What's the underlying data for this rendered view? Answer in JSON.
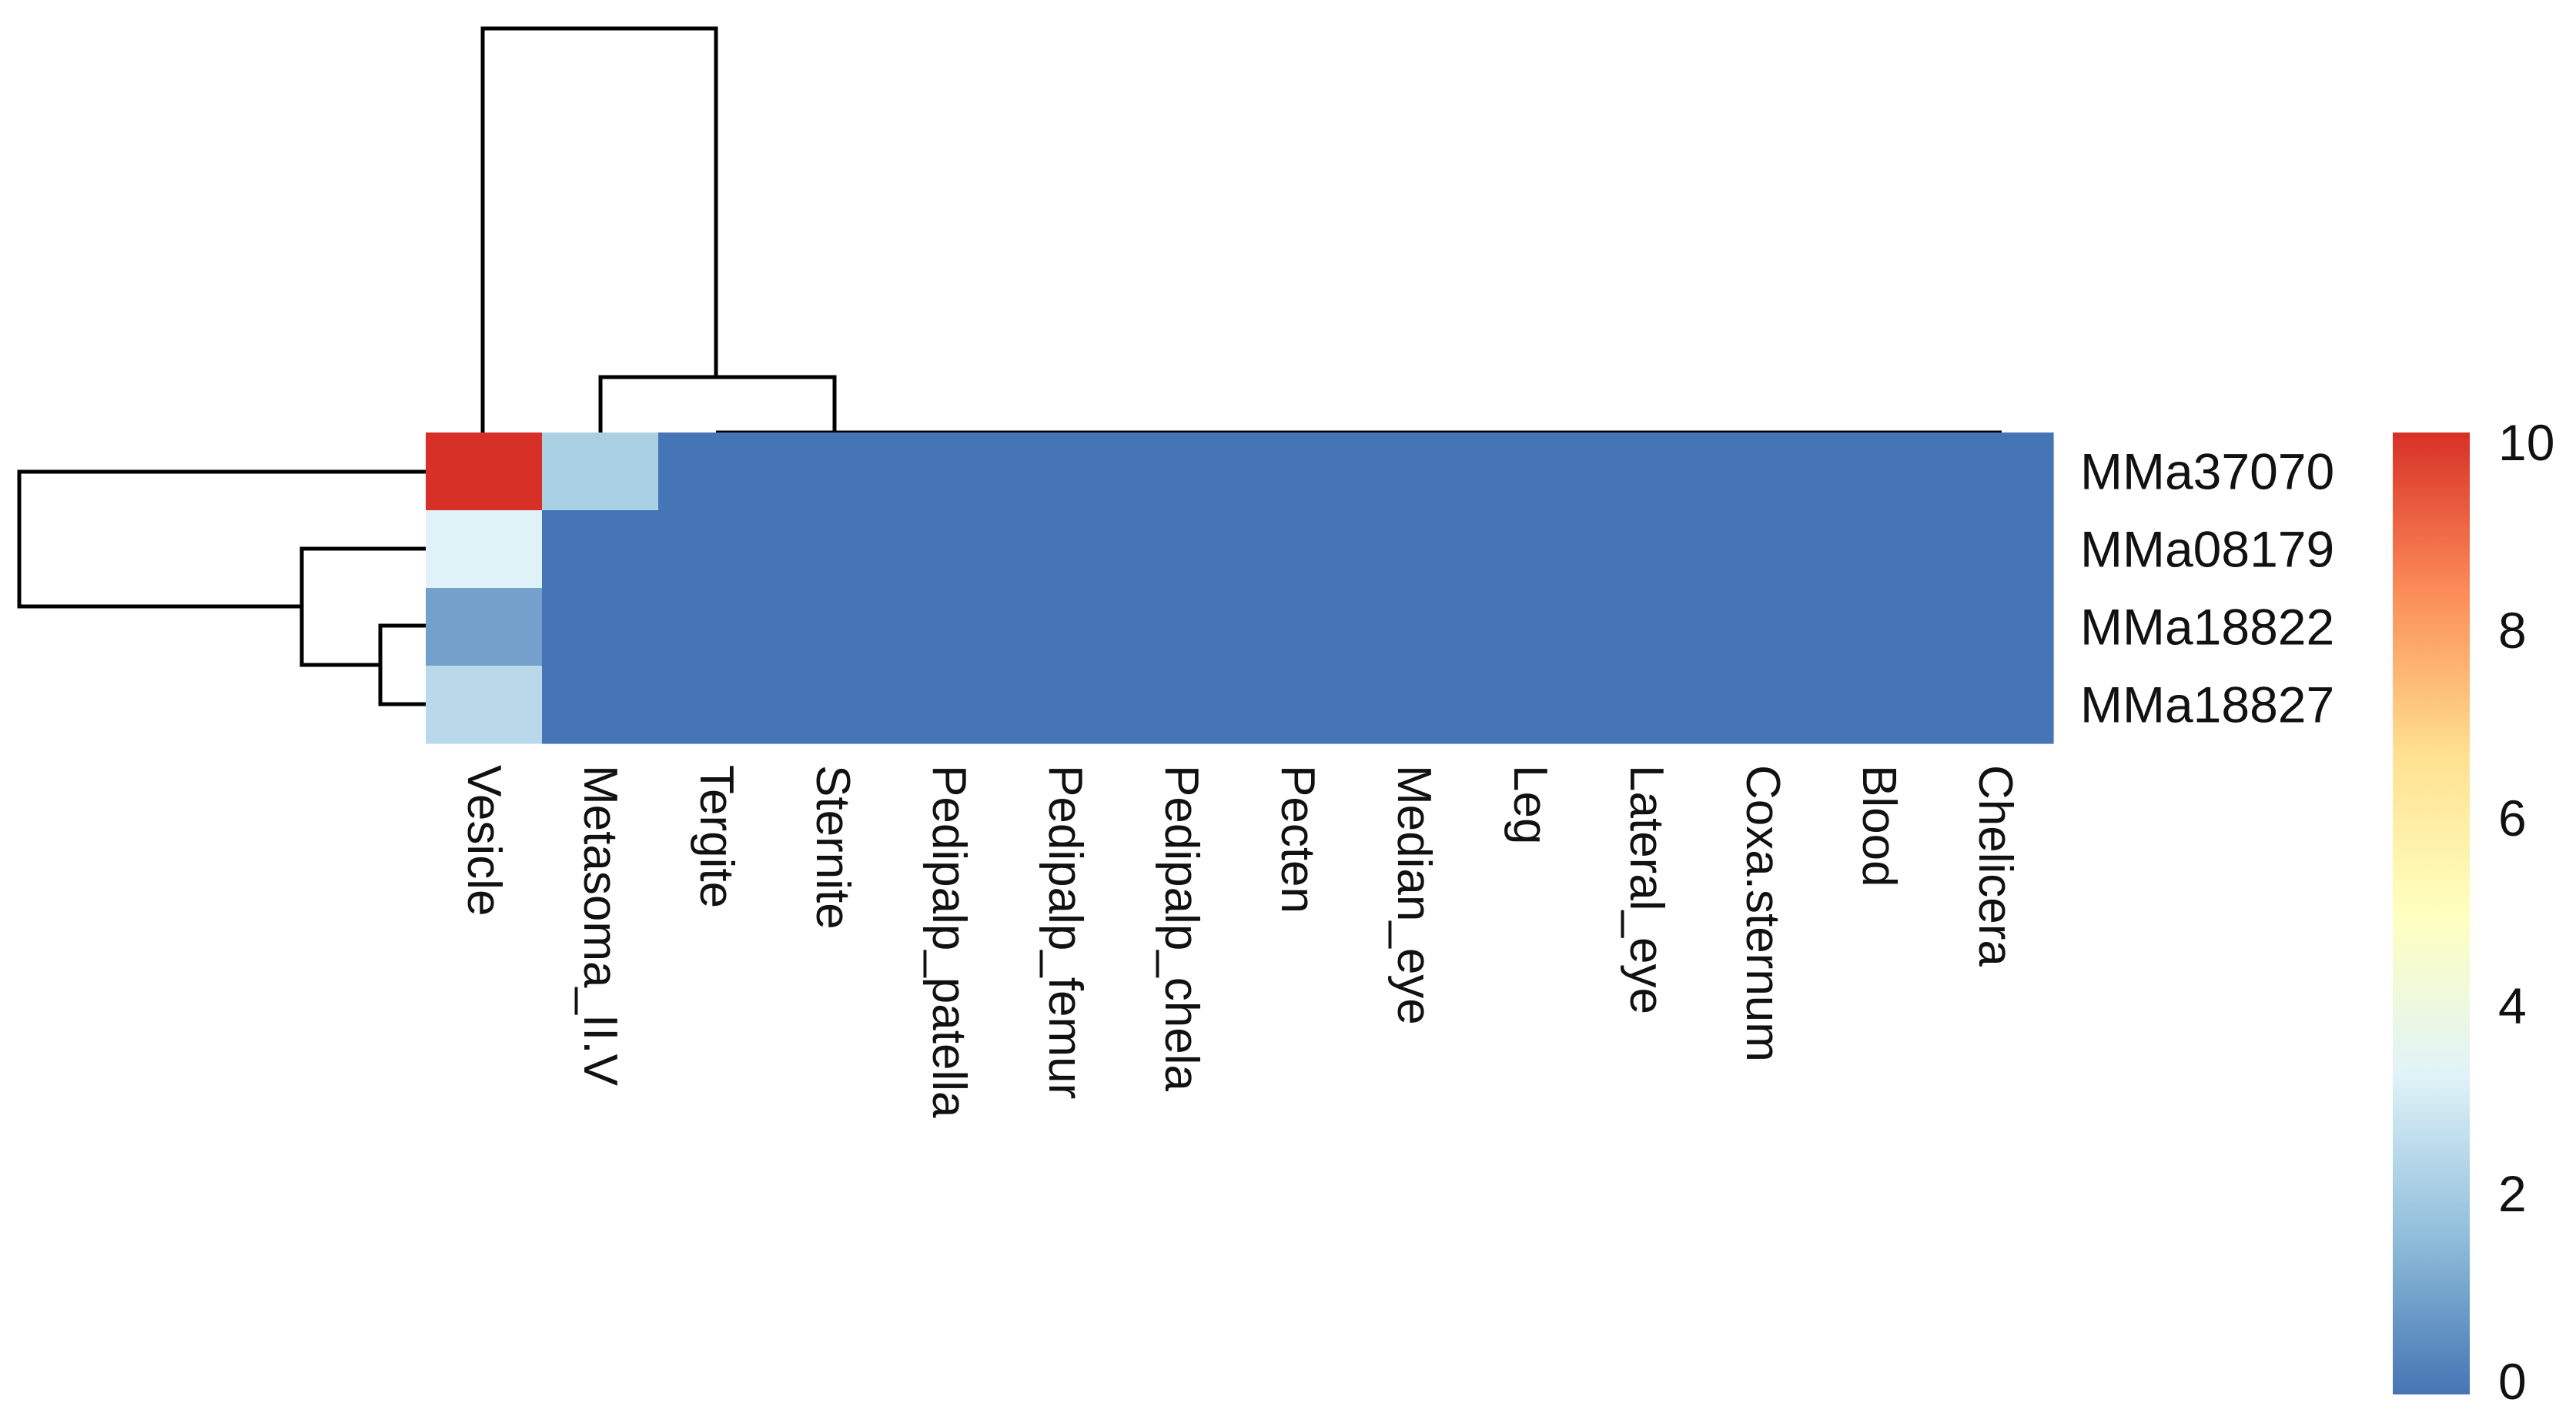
{
  "chart_data": {
    "type": "heatmap",
    "title": "",
    "xlabel": "",
    "ylabel": "",
    "columns": [
      "Vesicle",
      "Metasoma_II.V",
      "Tergite",
      "Sternite",
      "Pedipalp_patella",
      "Pedipalp_femur",
      "Pedipalp_chela",
      "Pecten",
      "Median_eye",
      "Leg",
      "Lateral_eye",
      "Coxa.sternum",
      "Blood",
      "Chelicera"
    ],
    "rows": [
      "MMa37070",
      "MMa08179",
      "MMa18822",
      "MMa18827"
    ],
    "values": [
      [
        10,
        2.2,
        0,
        0,
        0,
        0,
        0,
        0,
        0,
        0,
        0,
        0,
        0,
        0
      ],
      [
        3.3,
        0,
        0,
        0,
        0,
        0,
        0,
        0,
        0,
        0,
        0,
        0,
        0,
        0
      ],
      [
        1.0,
        0,
        0,
        0,
        0,
        0,
        0,
        0,
        0,
        0,
        0,
        0,
        0,
        0
      ],
      [
        2.5,
        0,
        0,
        0,
        0,
        0,
        0,
        0,
        0,
        0,
        0,
        0,
        0,
        0
      ]
    ],
    "color_scale": {
      "domain": [
        0,
        10
      ],
      "ticks": [
        0,
        2,
        4,
        6,
        8,
        10
      ],
      "stops": [
        "#4575b4",
        "#91bfdb",
        "#e0f3f8",
        "#ffffbf",
        "#fee090",
        "#fc8d59",
        "#d73027"
      ]
    },
    "row_dendrogram": {
      "merges": [
        [
          "MMa18822",
          "MMa18827"
        ],
        [
          "MMa08179",
          "MMa18822+MMa18827"
        ],
        [
          "MMa37070",
          "MMa08179+MMa18822+MMa18827"
        ]
      ]
    },
    "column_dendrogram": {
      "merges": [
        [
          "Metasoma_II.V",
          "Tergite ... Chelicera"
        ],
        [
          "Vesicle",
          "Metasoma_II.V ... Chelicera"
        ]
      ]
    },
    "legend_position": "right"
  }
}
